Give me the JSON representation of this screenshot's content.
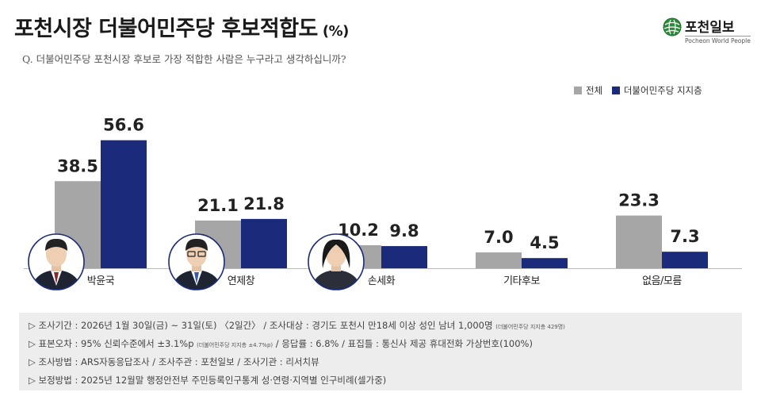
{
  "title": "포천시장 더불어민주당 후보적합도",
  "title_unit": "(%)",
  "logo": {
    "name": "포천일보",
    "subtitle": "Pocheon World People"
  },
  "question": "Q. 더불어민주당 포천시장 후보로 가장 적합한 사람은 누구라고 생각하십니까?",
  "colors": {
    "total": "#a6a6a6",
    "supporters": "#1b2a7a",
    "footer_bg": "#ededed",
    "accent": "#1b2a7a"
  },
  "chart_data": {
    "type": "bar",
    "categories": [
      "박윤국",
      "연제창",
      "손세화",
      "기타후보",
      "없음/모름"
    ],
    "series": [
      {
        "name": "전체",
        "values": [
          38.5,
          21.1,
          10.2,
          7.0,
          23.3
        ],
        "labels": [
          "38.5",
          "21.1",
          "10.2",
          "7.0",
          "23.3"
        ]
      },
      {
        "name": "더불어민주당 지지층",
        "values": [
          56.6,
          21.8,
          9.8,
          4.5,
          7.3
        ],
        "labels": [
          "56.6",
          "21.8",
          "9.8",
          "4.5",
          "7.3"
        ]
      }
    ],
    "ylim": [
      0,
      60
    ],
    "legend": "top-right",
    "grid": false
  },
  "candidates_with_photo": [
    "박윤국",
    "연제창",
    "손세화"
  ],
  "footer": {
    "lines": [
      {
        "text": "▷ 조사기간 : 2026년 1월 30일(금) ~ 31일(토) 〈2일간〉 / 조사대상 : 경기도 포천시 만18세 이상 성인 남녀 1,000명",
        "note": "(더불어민주당 지지층 429명)"
      },
      {
        "text": "▷ 표본오차 : 95% 신뢰수준에서 ±3.1%p",
        "note": "(더불어민주당 지지층 ±4.7%p)",
        "text2": " / 응답률 : 6.8% / 표집틀 : 통신사 제공 휴대전화 가상번호(100%)"
      },
      {
        "text": "▷ 조사방법 : ARS자동응답조사 / 조사주관 : 포천일보 / 조사기관 : 리서치뷰"
      },
      {
        "text": "▷ 보정방법 : 2025년 12월말 행정안전부 주민등록인구통계 성·연령·지역별 인구비례(셀가중)"
      }
    ]
  }
}
